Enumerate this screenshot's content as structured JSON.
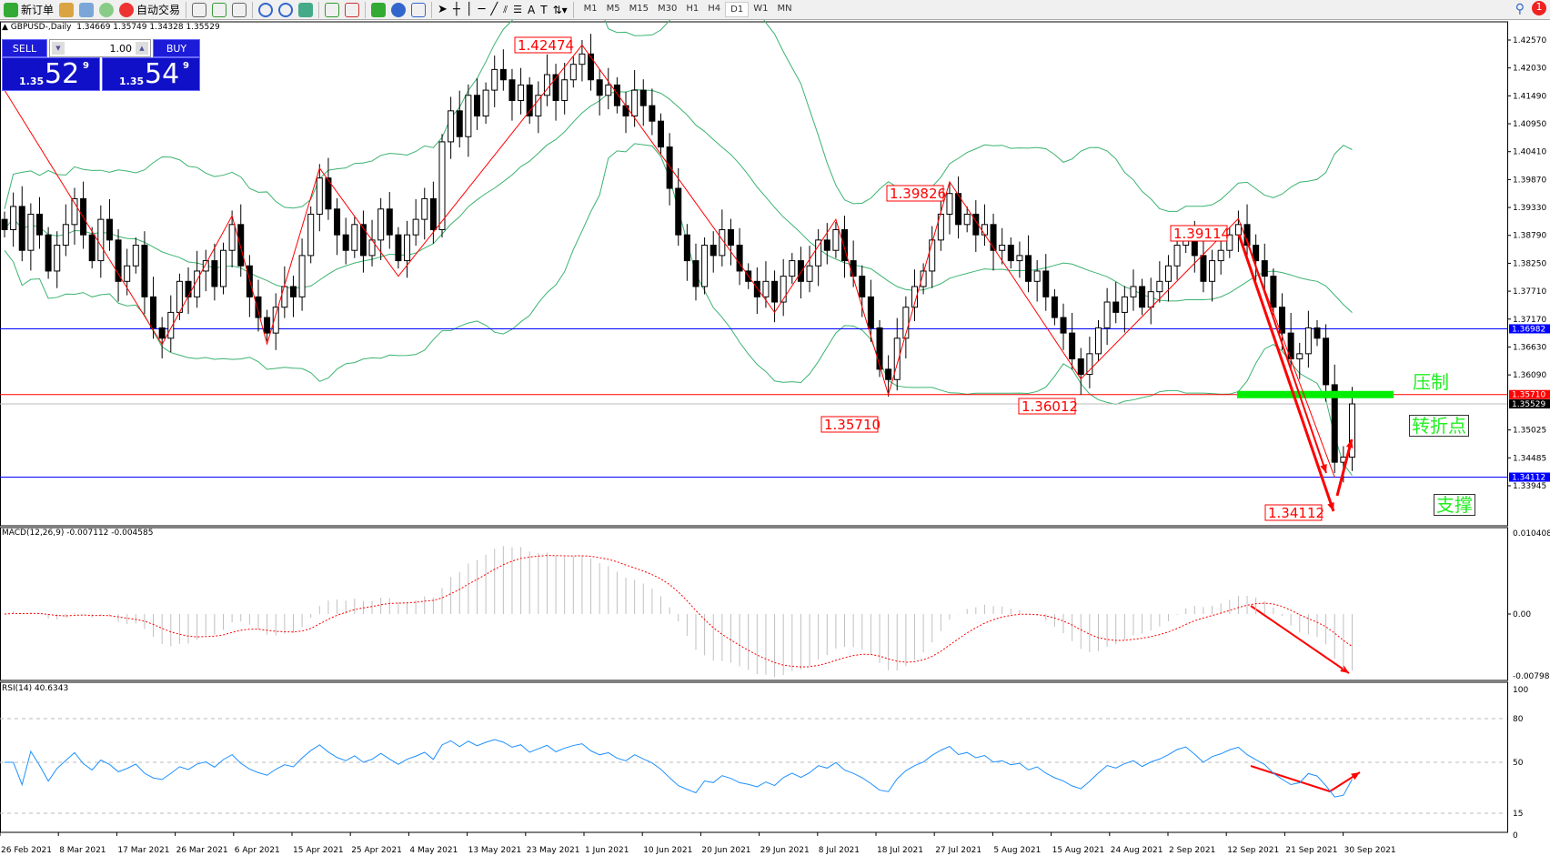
{
  "toolbar": {
    "new_order": "新订单",
    "auto_trading": "自动交易",
    "timeframes": [
      "M1",
      "M5",
      "M15",
      "M30",
      "H1",
      "H4",
      "D1",
      "W1",
      "MN"
    ],
    "active_timeframe": "D1",
    "notification_count": "1"
  },
  "chart_header": {
    "symbol": "GBPUSD-,Daily",
    "ohlc": "1.34669 1.35749 1.34328 1.35529"
  },
  "trade_panel": {
    "sell_label": "SELL",
    "buy_label": "BUY",
    "lot": "1.00",
    "sell_prefix": "1.35",
    "sell_big": "52",
    "sell_sup": "9",
    "buy_prefix": "1.35",
    "buy_big": "54",
    "buy_sup": "9"
  },
  "price_axis": [
    "1.42570",
    "1.42030",
    "1.41490",
    "1.40950",
    "1.40410",
    "1.39870",
    "1.39330",
    "1.38790",
    "1.38250",
    "1.37710",
    "1.37170",
    "1.36630",
    "1.36090",
    "1.35025",
    "1.34485",
    "1.33945"
  ],
  "hlines": [
    {
      "price": 1.36982,
      "label": "1.36982",
      "color": "#0000ff"
    },
    {
      "price": 1.3571,
      "label": "1.35710",
      "color": "#ff0000"
    },
    {
      "price": 1.34112,
      "label": "1.34112",
      "color": "#0000ff"
    },
    {
      "price": 1.35529,
      "label": "1.35529",
      "color": "#000000"
    }
  ],
  "annotations": {
    "resistance": "压制",
    "turning_point": "转折点",
    "support": "支撑"
  },
  "macd": {
    "label": "MACD(12,26,9) -0.007112 -0.004585",
    "axis": [
      "0.010408",
      "0.00",
      "-0.007985"
    ]
  },
  "rsi": {
    "label": "RSI(14) 40.6343",
    "axis": [
      "100",
      "80",
      "50",
      "15",
      "0"
    ]
  },
  "dates": [
    "26 Feb 2021",
    "8 Mar 2021",
    "17 Mar 2021",
    "26 Mar 2021",
    "6 Apr 2021",
    "15 Apr 2021",
    "25 Apr 2021",
    "4 May 2021",
    "13 May 2021",
    "23 May 2021",
    "1 Jun 2021",
    "10 Jun 2021",
    "20 Jun 2021",
    "29 Jun 2021",
    "8 Jul 2021",
    "18 Jul 2021",
    "27 Jul 2021",
    "5 Aug 2021",
    "15 Aug 2021",
    "24 Aug 2021",
    "2 Sep 2021",
    "12 Sep 2021",
    "21 Sep 2021",
    "30 Sep 2021"
  ],
  "chart_data": {
    "type": "candlestick",
    "symbol": "GBPUSD",
    "timeframe": "Daily",
    "ylim": [
      1.33945,
      1.4257
    ],
    "closes": [
      1.389,
      1.3935,
      1.385,
      1.392,
      1.388,
      1.381,
      1.386,
      1.39,
      1.395,
      1.388,
      1.383,
      1.391,
      1.387,
      1.379,
      1.382,
      1.386,
      1.376,
      1.37,
      1.368,
      1.373,
      1.379,
      1.376,
      1.381,
      1.383,
      1.378,
      1.385,
      1.39,
      1.382,
      1.376,
      1.372,
      1.369,
      1.374,
      1.378,
      1.376,
      1.384,
      1.392,
      1.399,
      1.393,
      1.388,
      1.385,
      1.39,
      1.384,
      1.387,
      1.393,
      1.388,
      1.383,
      1.388,
      1.391,
      1.395,
      1.389,
      1.406,
      1.412,
      1.407,
      1.415,
      1.411,
      1.416,
      1.42,
      1.418,
      1.414,
      1.417,
      1.411,
      1.415,
      1.419,
      1.414,
      1.418,
      1.421,
      1.423,
      1.418,
      1.415,
      1.417,
      1.413,
      1.411,
      1.416,
      1.413,
      1.41,
      1.405,
      1.397,
      1.388,
      1.383,
      1.378,
      1.386,
      1.384,
      1.389,
      1.386,
      1.381,
      1.379,
      1.376,
      1.379,
      1.375,
      1.38,
      1.383,
      1.379,
      1.382,
      1.387,
      1.385,
      1.389,
      1.383,
      1.38,
      1.376,
      1.37,
      1.362,
      1.36,
      1.368,
      1.374,
      1.378,
      1.381,
      1.387,
      1.392,
      1.396,
      1.39,
      1.392,
      1.388,
      1.39,
      1.385,
      1.386,
      1.383,
      1.384,
      1.379,
      1.381,
      1.376,
      1.372,
      1.369,
      1.364,
      1.361,
      1.365,
      1.37,
      1.375,
      1.373,
      1.376,
      1.378,
      1.374,
      1.377,
      1.379,
      1.382,
      1.386,
      1.388,
      1.384,
      1.379,
      1.383,
      1.385,
      1.388,
      1.39,
      1.386,
      1.383,
      1.38,
      1.374,
      1.369,
      1.364,
      1.365,
      1.37,
      1.368,
      1.359,
      1.344,
      1.345,
      1.35529
    ],
    "zigzag": [
      {
        "bar": 0,
        "price": 1.416
      },
      {
        "bar": 18,
        "price": 1.3668
      },
      {
        "bar": 26,
        "price": 1.3917
      },
      {
        "bar": 30,
        "price": 1.3669
      },
      {
        "bar": 36,
        "price": 1.4009
      },
      {
        "bar": 45,
        "price": 1.38
      },
      {
        "bar": 66,
        "price": 1.42474,
        "label": "1.42474"
      },
      {
        "bar": 88,
        "price": 1.373
      },
      {
        "bar": 95,
        "price": 1.391
      },
      {
        "bar": 101,
        "price": 1.3571,
        "label": "1.35710"
      },
      {
        "bar": 108,
        "price": 1.39826,
        "label": "1.39826"
      },
      {
        "bar": 123,
        "price": 1.36012,
        "label": "1.36012"
      },
      {
        "bar": 141,
        "price": 1.39114,
        "label": "1.39114"
      },
      {
        "bar": 152,
        "price": 1.34112,
        "label": "1.34112"
      }
    ],
    "indicators": [
      "Bollinger Bands(20,2)",
      "MACD(12,26,9)",
      "RSI(14)"
    ],
    "colors": {
      "bull": "#ffffff",
      "bear": "#000000",
      "bands": "#3cb371",
      "zigzag": "#ff0000",
      "macd_hist": "#c0c0c0",
      "macd_signal": "#ff0000",
      "rsi": "#1e90ff"
    }
  }
}
